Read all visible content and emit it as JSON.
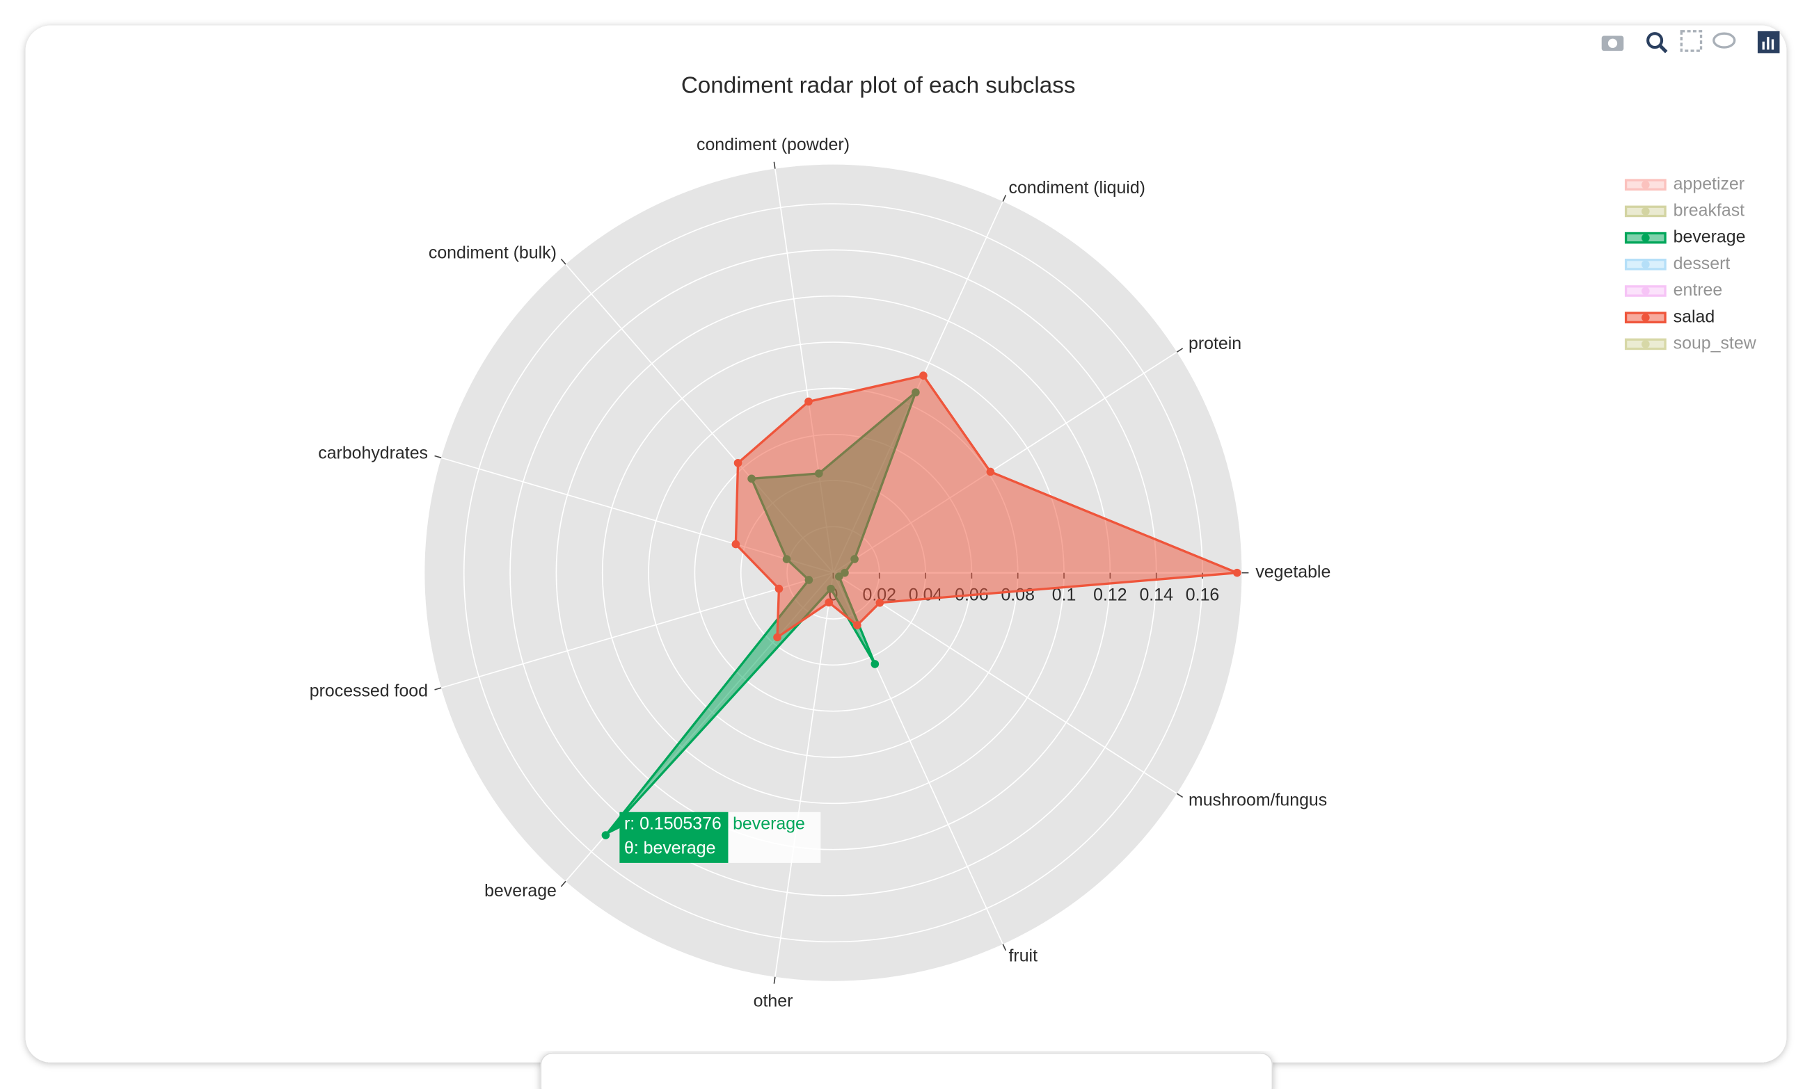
{
  "chart_data": {
    "type": "radar",
    "title": "Condiment radar plot of each subclass",
    "categories": [
      "vegetable",
      "protein",
      "condiment (liquid)",
      "condiment (powder)",
      "condiment (bulk)",
      "carbohydrates",
      "processed food",
      "beverage",
      "other",
      "fruit",
      "mushroom/fungus"
    ],
    "rlim": [
      0,
      0.177
    ],
    "rticks": [
      0,
      0.02,
      0.04,
      0.06,
      0.08,
      0.1,
      0.12,
      0.14,
      0.16
    ],
    "grid": true,
    "legend": "top-right",
    "series": [
      {
        "name": "appetizer",
        "color": "#f8877f",
        "visible": "legendonly"
      },
      {
        "name": "breakfast",
        "color": "#a9ab47",
        "visible": "legendonly"
      },
      {
        "name": "beverage",
        "color": "#00a65a",
        "visible": true,
        "values": [
          0.005,
          0.011,
          0.086,
          0.0435,
          0.054,
          0.021,
          0.011,
          0.1505376,
          0.007,
          0.0435,
          0.003
        ]
      },
      {
        "name": "dessert",
        "color": "#6ec1f2",
        "visible": "legendonly"
      },
      {
        "name": "entree",
        "color": "#ee8bef",
        "visible": "legendonly"
      },
      {
        "name": "salad",
        "color": "#ef553b",
        "visible": true,
        "values": [
          0.175,
          0.081,
          0.094,
          0.075,
          0.063,
          0.044,
          0.0245,
          0.037,
          0.013,
          0.025,
          0.024
        ]
      },
      {
        "name": "soup_stew",
        "color": "#b0b352",
        "visible": "legendonly"
      }
    ],
    "hover": {
      "r_label": "r: 0.1505376",
      "theta_label": "θ: beverage",
      "name": "beverage"
    }
  }
}
